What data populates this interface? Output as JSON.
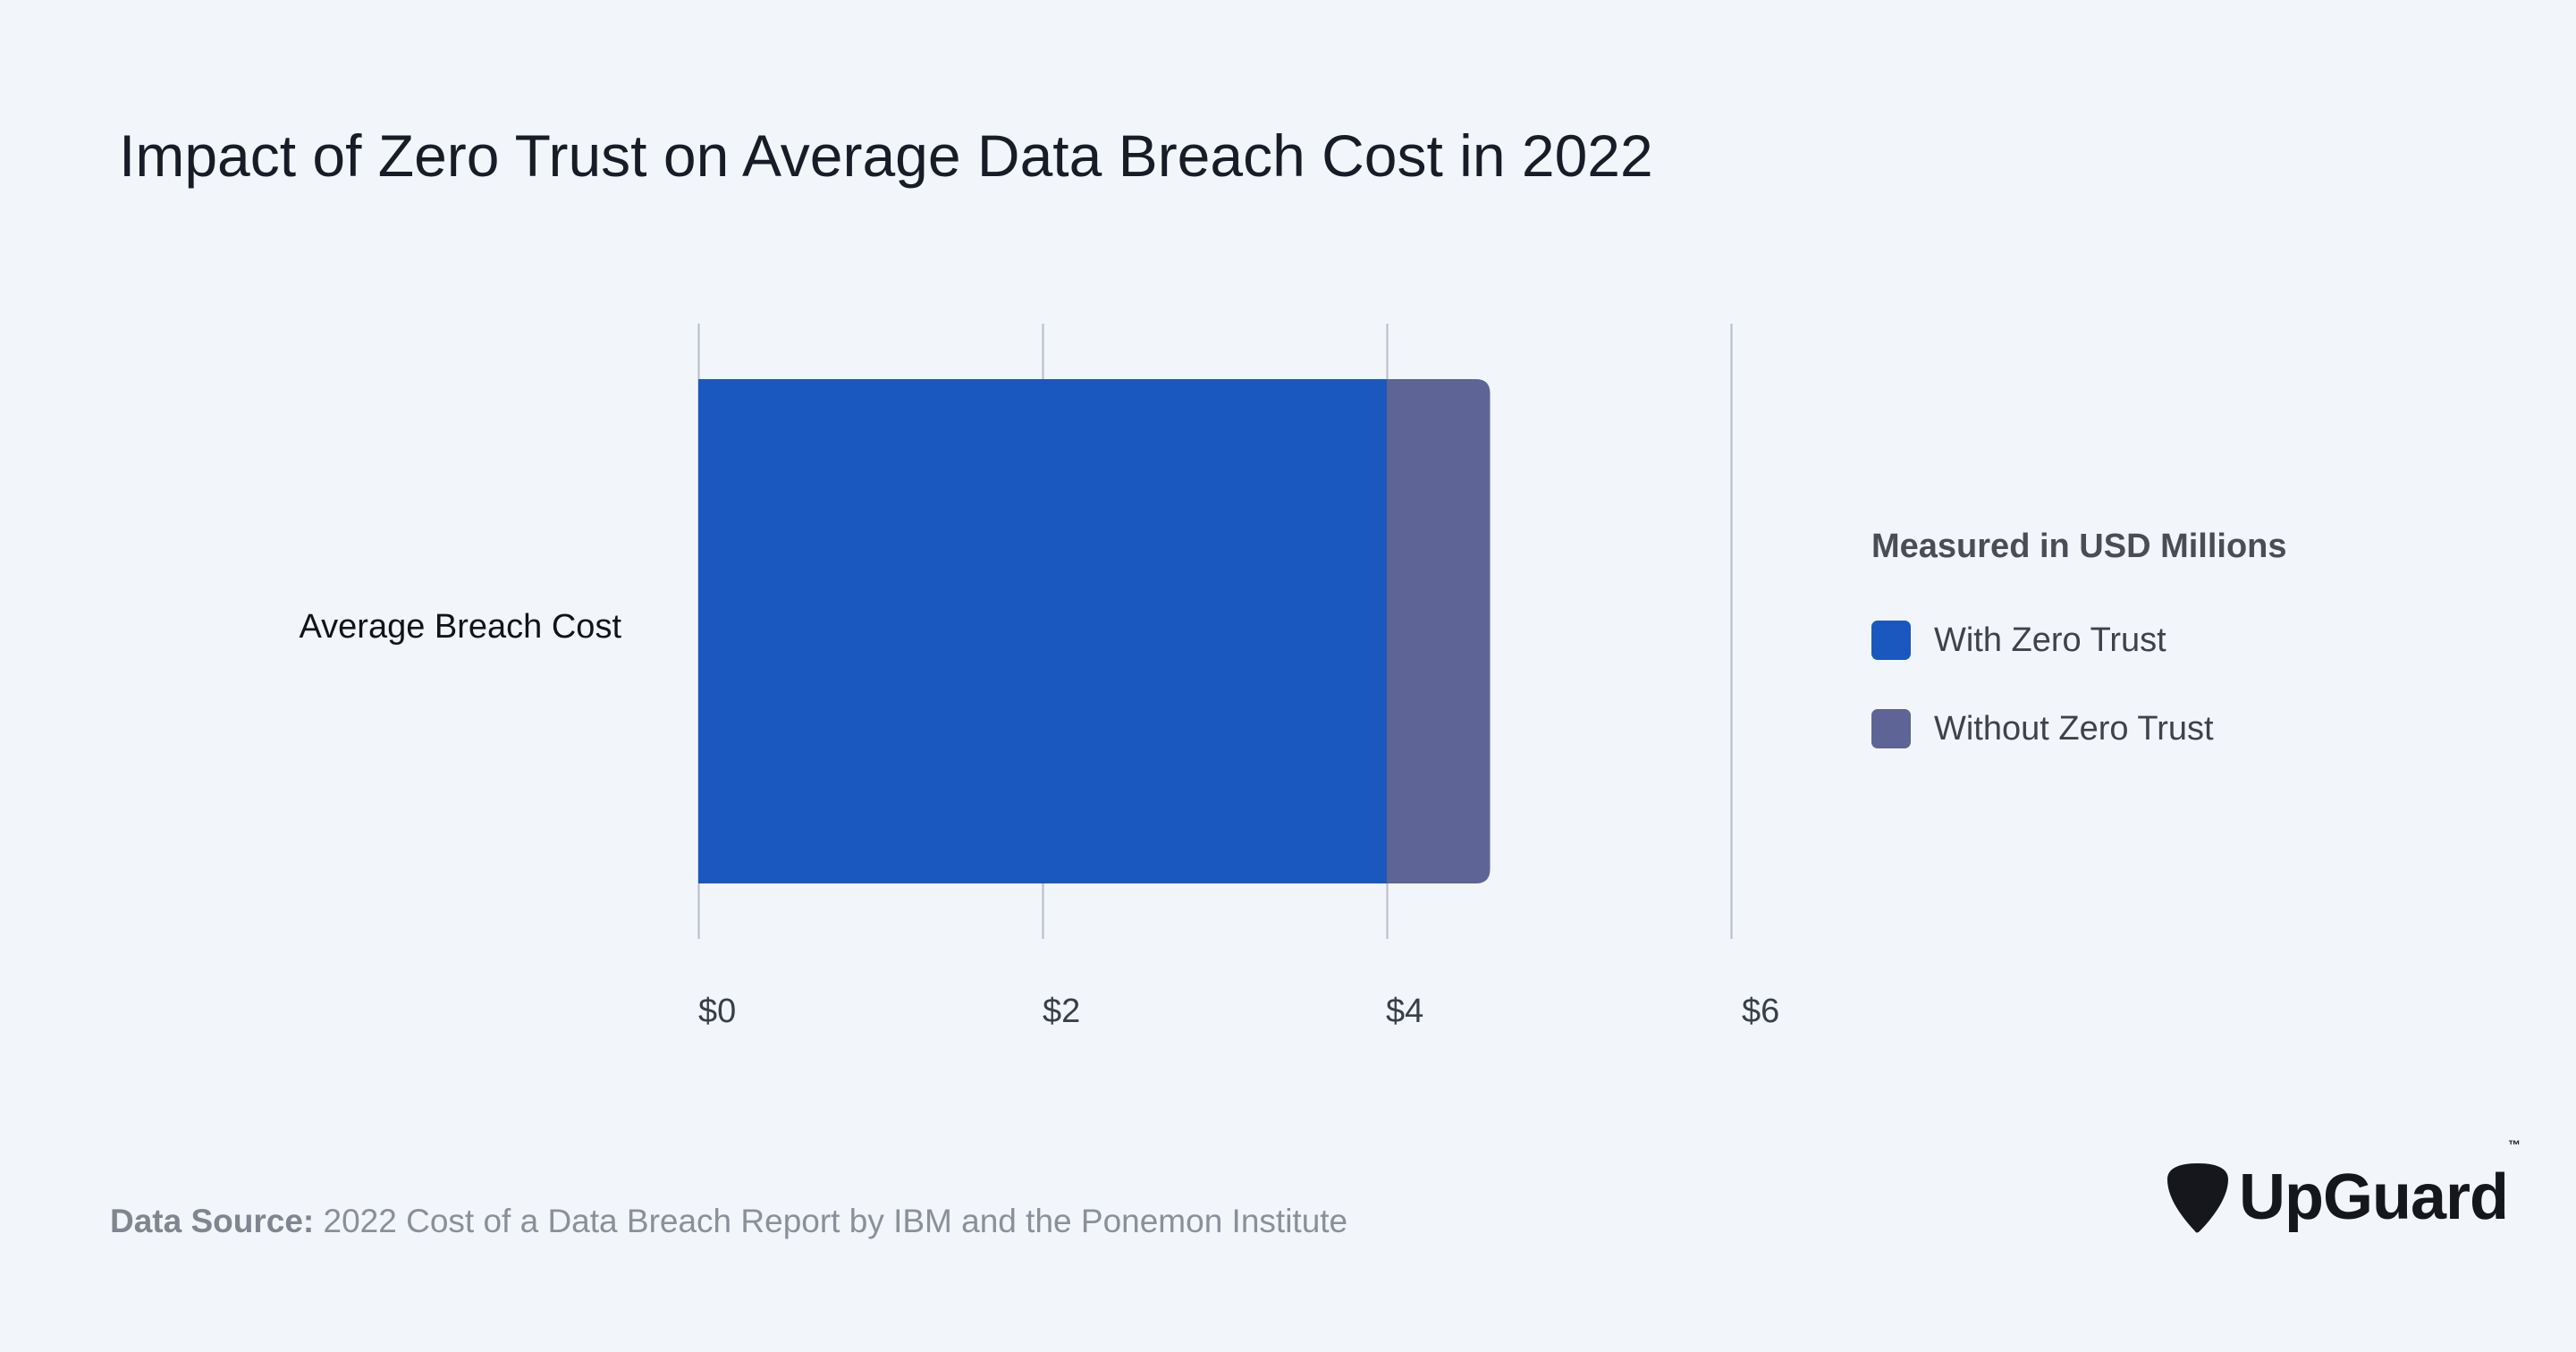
{
  "title": "Impact of Zero Trust on Average Data Breach Cost in 2022",
  "chart_data": {
    "type": "bar",
    "orientation": "horizontal",
    "stacked": false,
    "categories": [
      "Average Breach Cost"
    ],
    "series": [
      {
        "name": "With Zero Trust",
        "values": [
          4.0
        ],
        "color": "#1a58c0"
      },
      {
        "name": "Without Zero Trust",
        "values": [
          4.6
        ],
        "color": "#5e6495"
      }
    ],
    "xlim": [
      0,
      6
    ],
    "xticks": [
      0,
      2,
      4,
      6
    ],
    "xtick_labels": [
      "$0",
      "$2",
      "$4",
      "$6"
    ],
    "grid": true,
    "legend_title": "Measured in USD Millions",
    "legend_position": "right"
  },
  "source": {
    "label": "Data Source:",
    "text": "2022 Cost of a Data Breach Report by IBM and the Ponemon Institute"
  },
  "logo": {
    "text": "UpGuard",
    "tm": "™"
  },
  "colors": {
    "background": "#f2f5fa",
    "gridline": "#b5bccb"
  }
}
